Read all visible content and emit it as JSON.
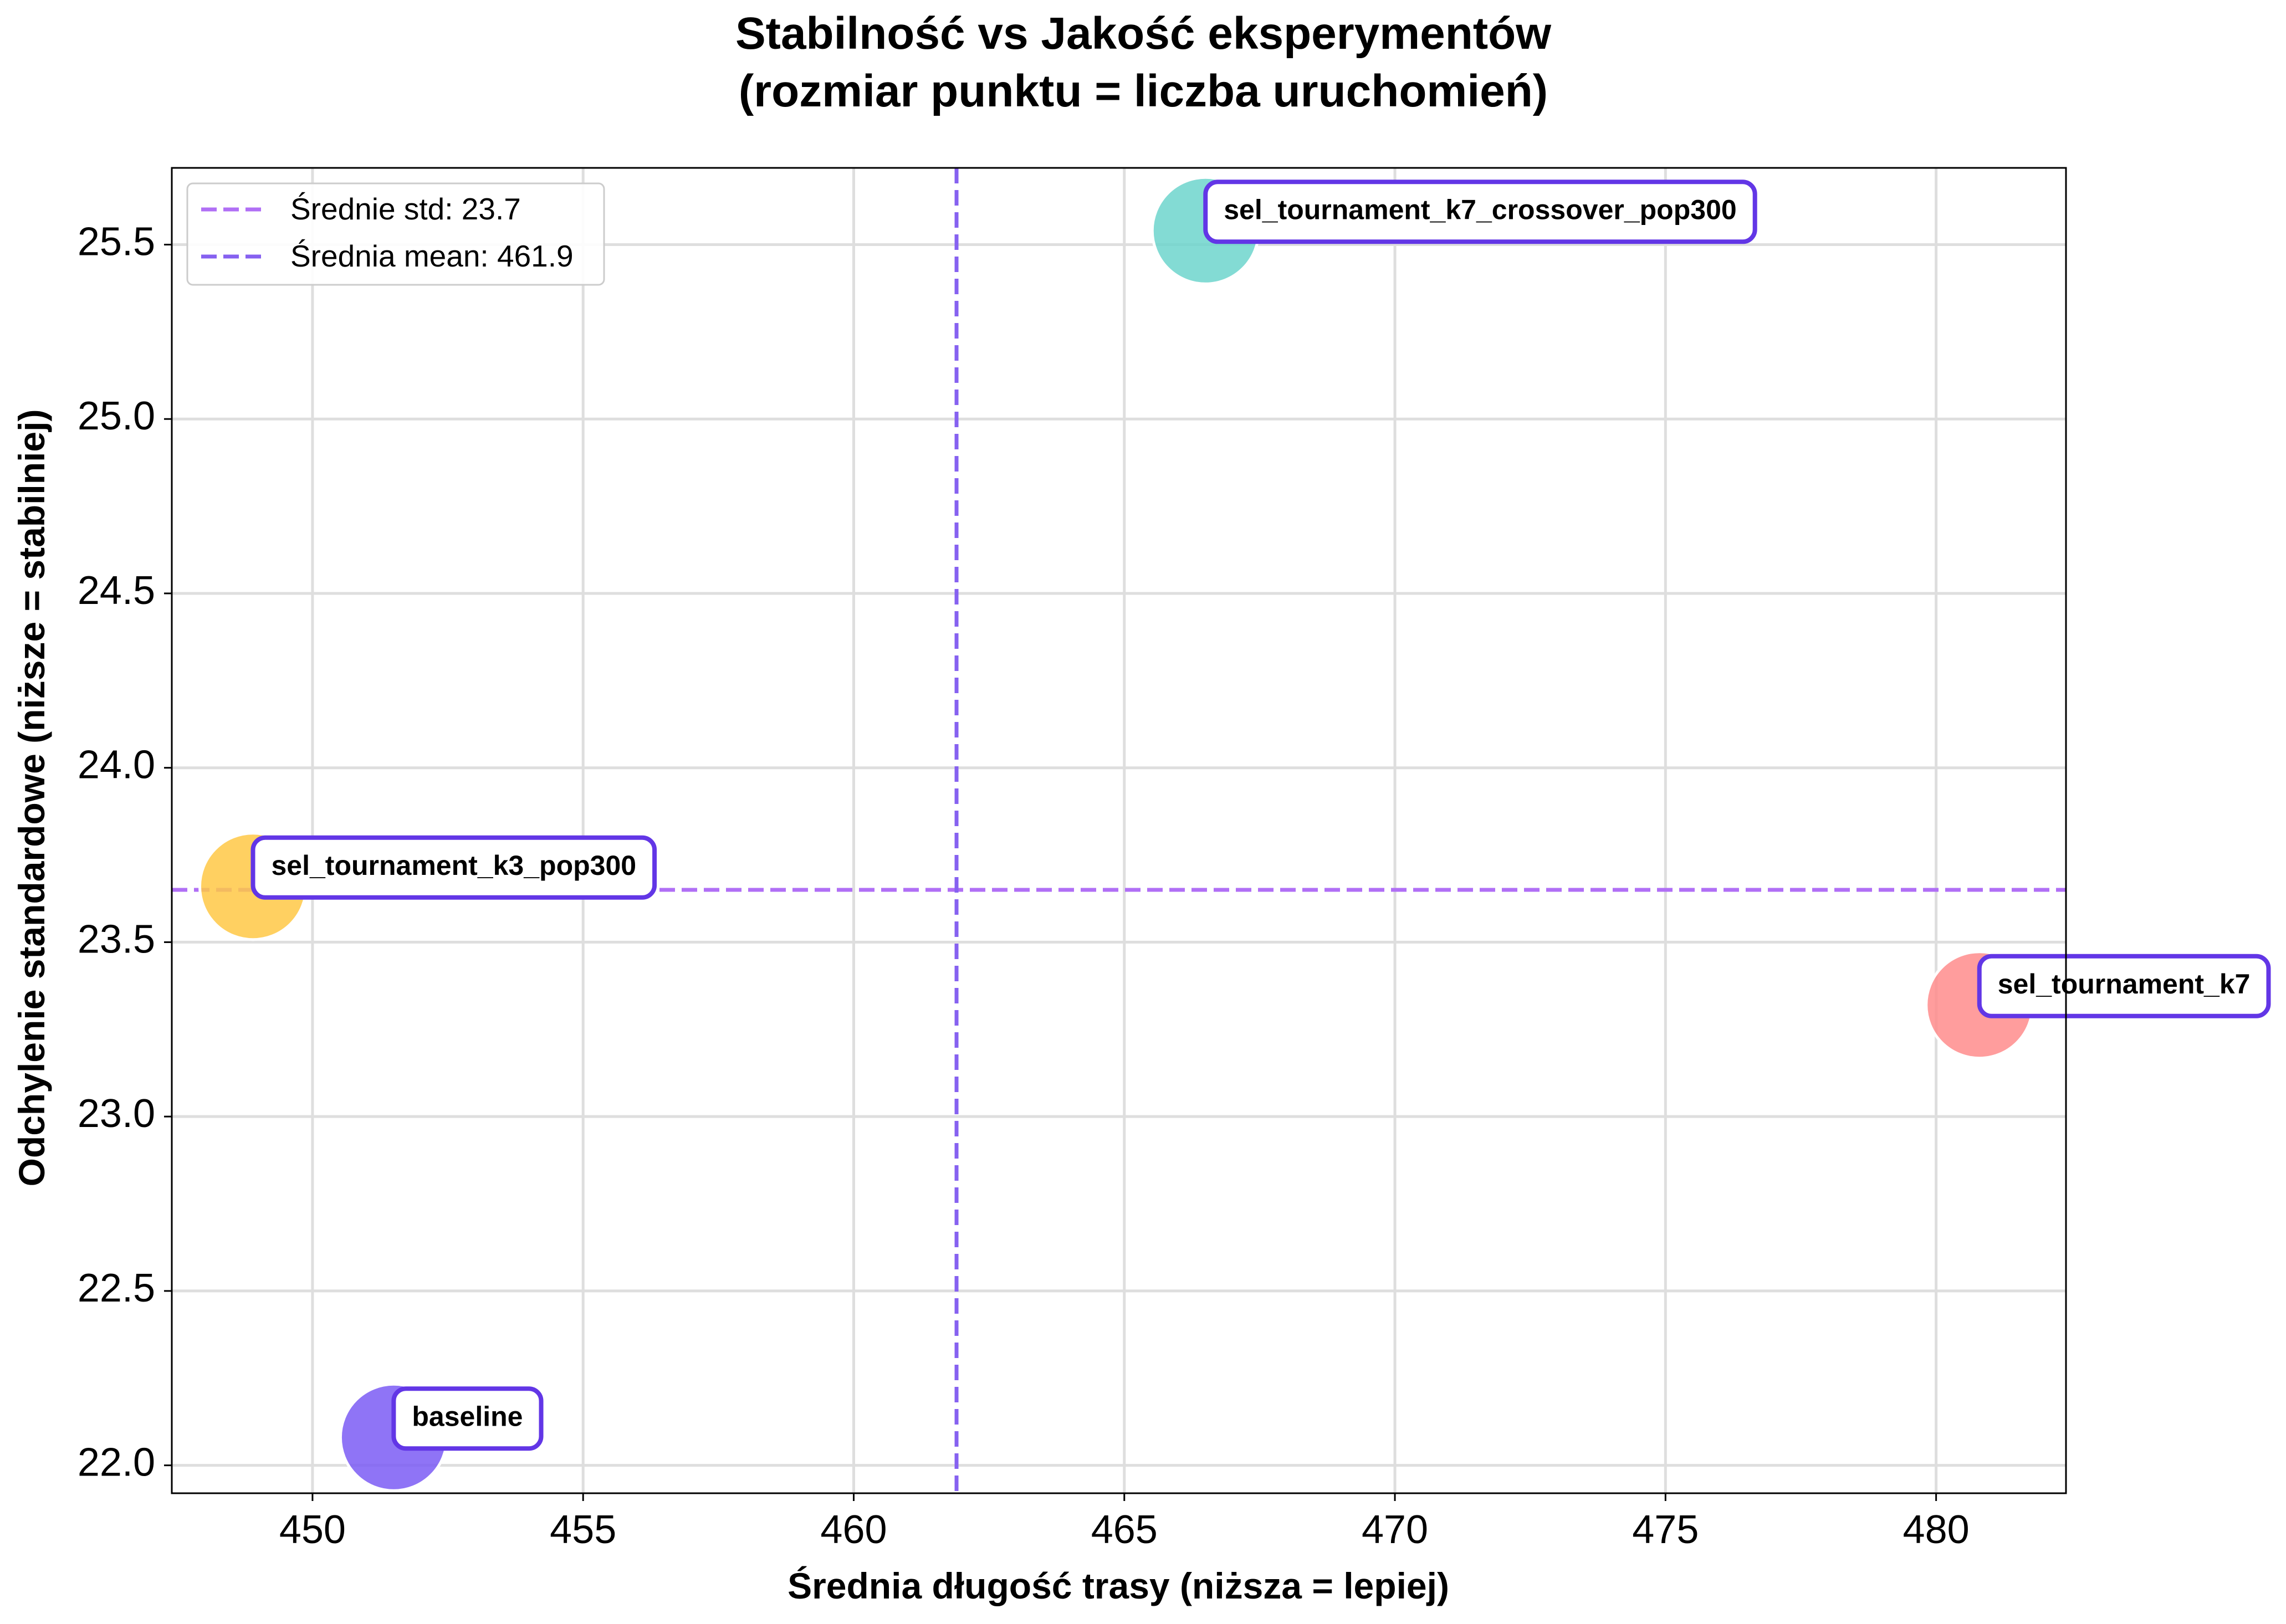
{
  "chart_data": {
    "type": "scatter",
    "title": [
      "Stabilność vs Jakość eksperymentów",
      "(rozmiar punktu = liczba uruchomień)"
    ],
    "xlabel": "Średnia długość trasy (niższa = lepiej)",
    "ylabel": "Odchylenie standardowe (niższe = stabilniej)",
    "xlim": [
      447.4,
      482.4
    ],
    "ylim": [
      21.92,
      25.72
    ],
    "xticks": [
      450,
      455,
      460,
      465,
      470,
      475,
      480
    ],
    "yticks": [
      22.0,
      22.5,
      23.0,
      23.5,
      24.0,
      24.5,
      25.0,
      25.5
    ],
    "xtick_labels": [
      "450",
      "455",
      "460",
      "465",
      "470",
      "475",
      "480"
    ],
    "ytick_labels": [
      "22.0",
      "22.5",
      "23.0",
      "23.5",
      "24.0",
      "24.5",
      "25.0",
      "25.5"
    ],
    "grid": true,
    "legend_position": "top-left",
    "points": [
      {
        "name": "baseline",
        "x": 451.5,
        "y": 22.08,
        "color": "#7B5CF5"
      },
      {
        "name": "sel_tournament_k3_pop300",
        "x": 448.9,
        "y": 23.66,
        "color": "#FFC845"
      },
      {
        "name": "sel_tournament_k7",
        "x": 480.8,
        "y": 23.32,
        "color": "#FF8C8C"
      },
      {
        "name": "sel_tournament_k7_crossover_pop300",
        "x": 466.5,
        "y": 25.54,
        "color": "#6DD5CC"
      }
    ],
    "reference_lines": [
      {
        "orientation": "horizontal",
        "value": 23.65,
        "label": "Średnie std: 23.7",
        "color": "#B06FF5"
      },
      {
        "orientation": "vertical",
        "value": 461.9,
        "label": "Średnia mean: 461.9",
        "color": "#8661F0"
      }
    ],
    "annotation_border_color": "#6236E6"
  }
}
